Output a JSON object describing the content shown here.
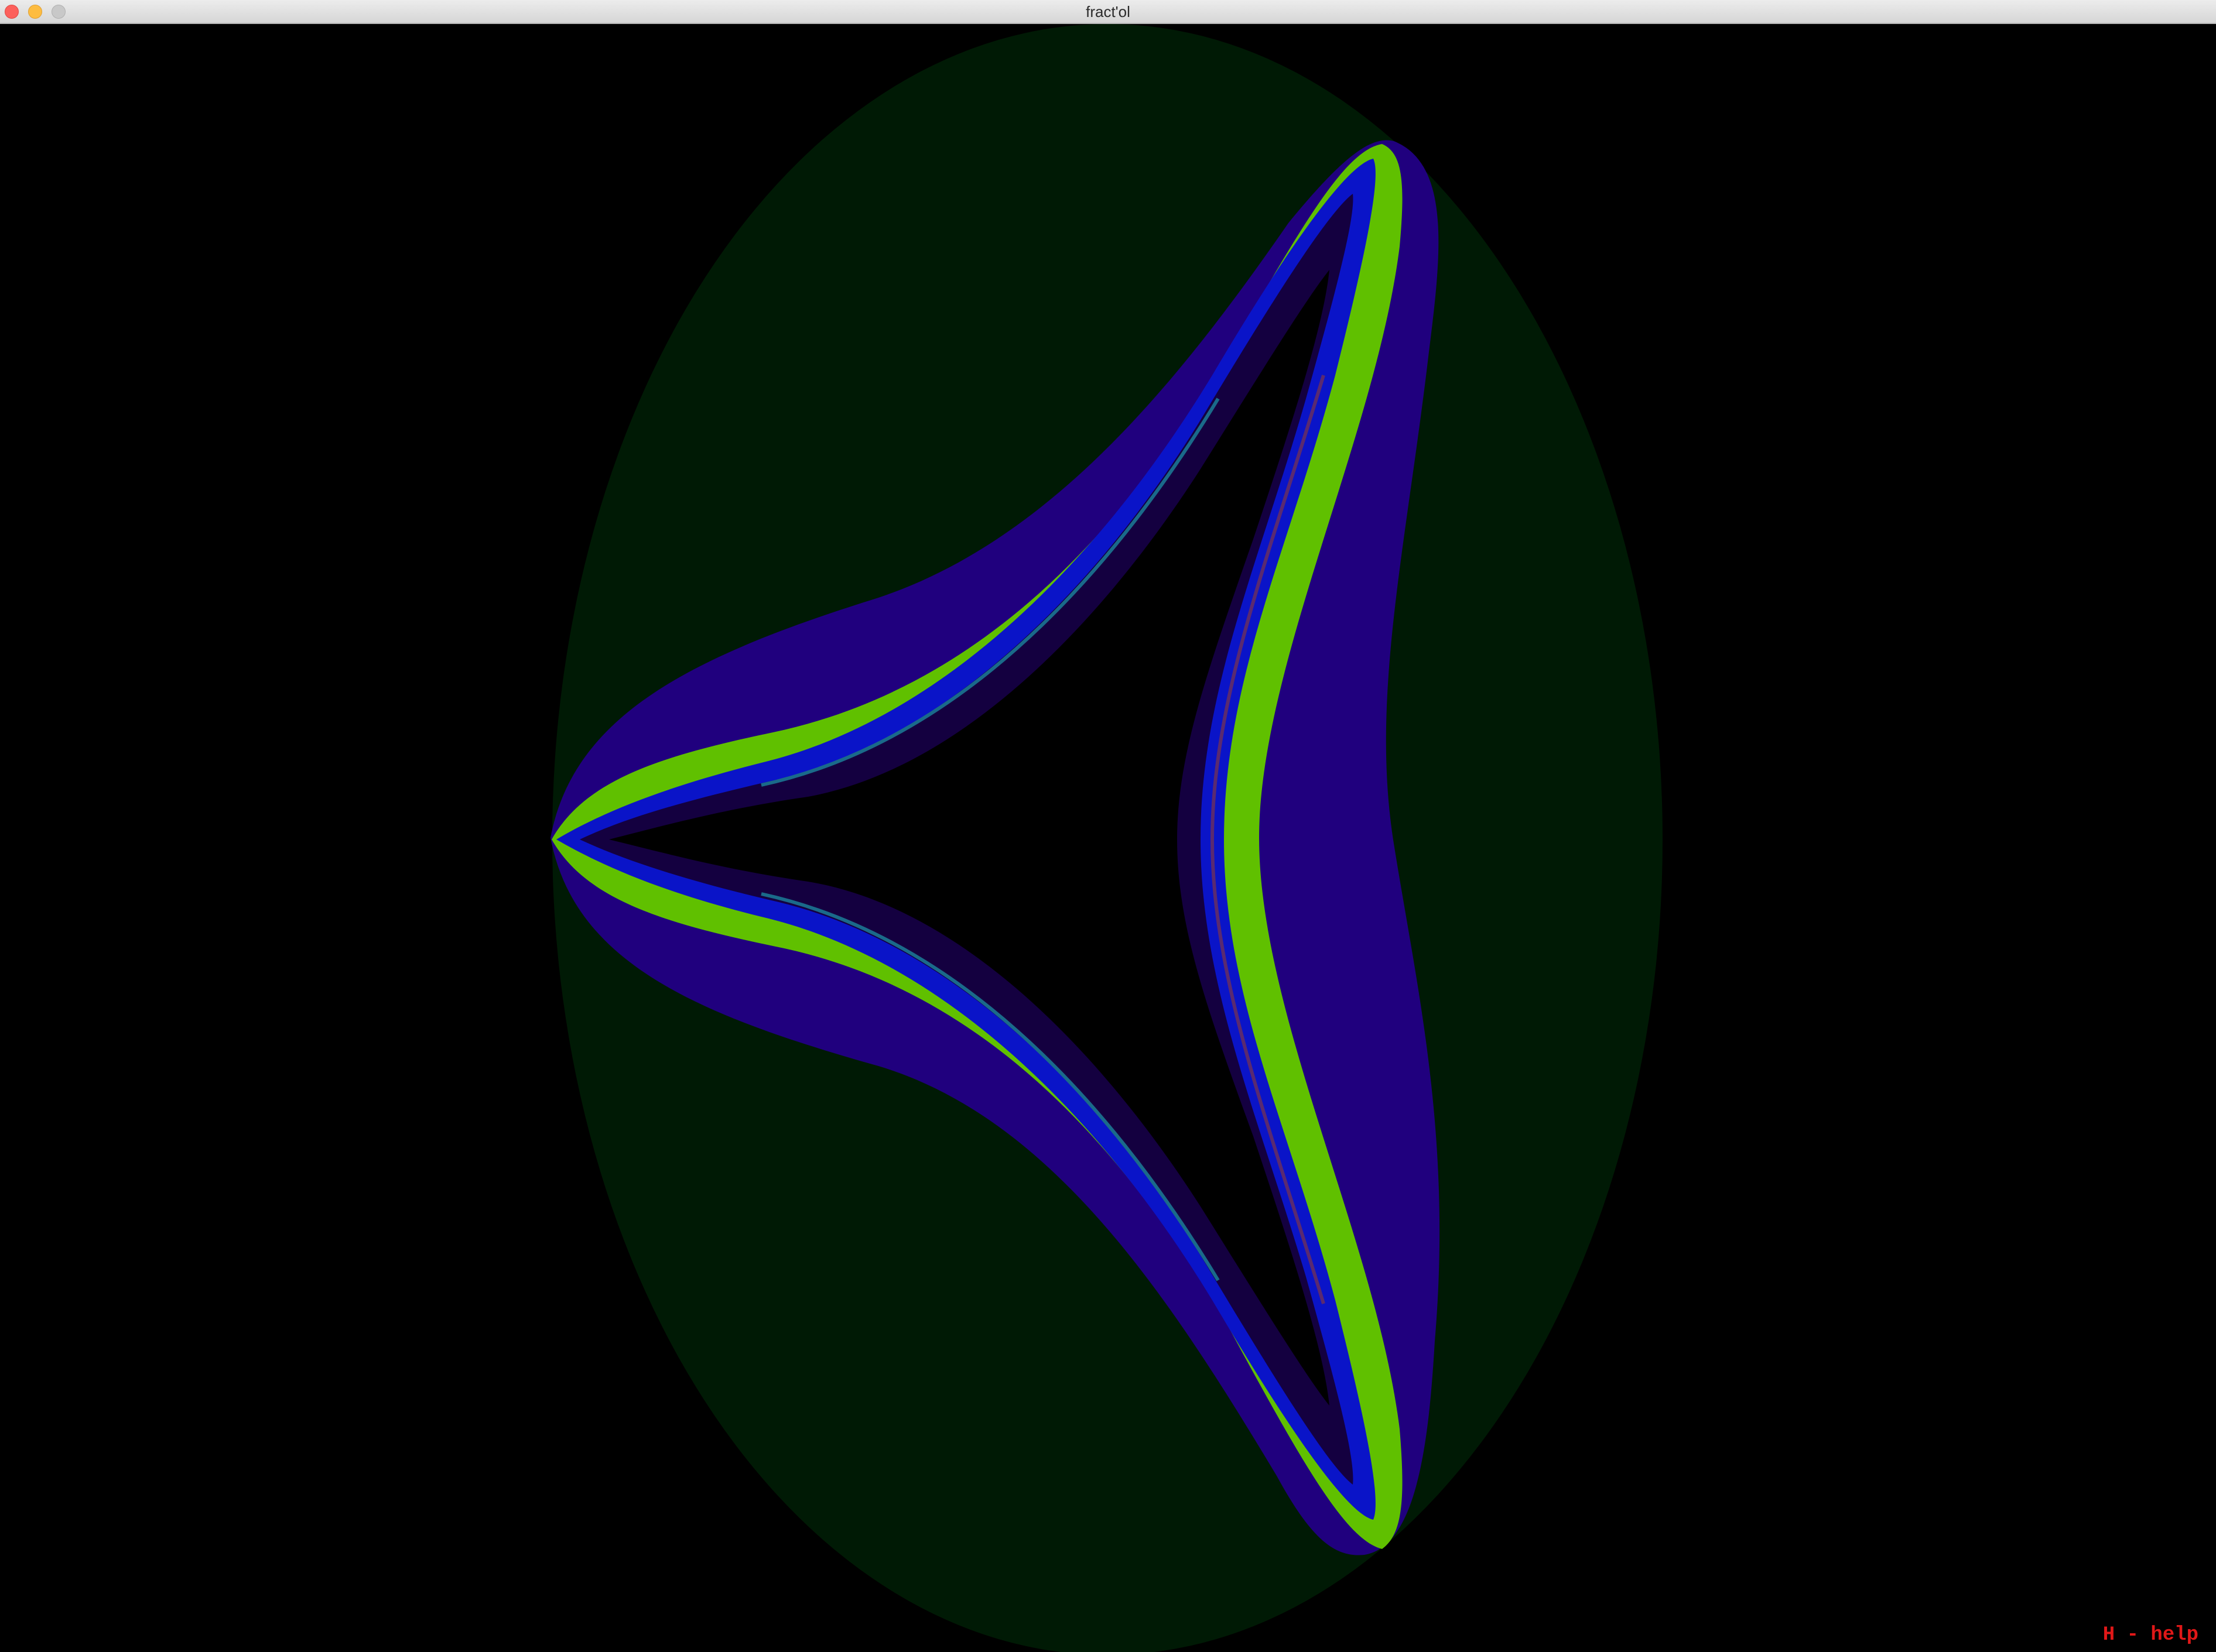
{
  "window": {
    "title": "fract'ol",
    "controls": [
      "close",
      "minimize",
      "zoom"
    ]
  },
  "fractal": {
    "colors": {
      "background": "#000000",
      "outer_band": "#001a05",
      "blue_band": "#20007e",
      "green_band": "#60c000",
      "inner_blue": "#0a14c8",
      "interior": "#000000"
    }
  },
  "overlay": {
    "help_hint": "H - help"
  }
}
